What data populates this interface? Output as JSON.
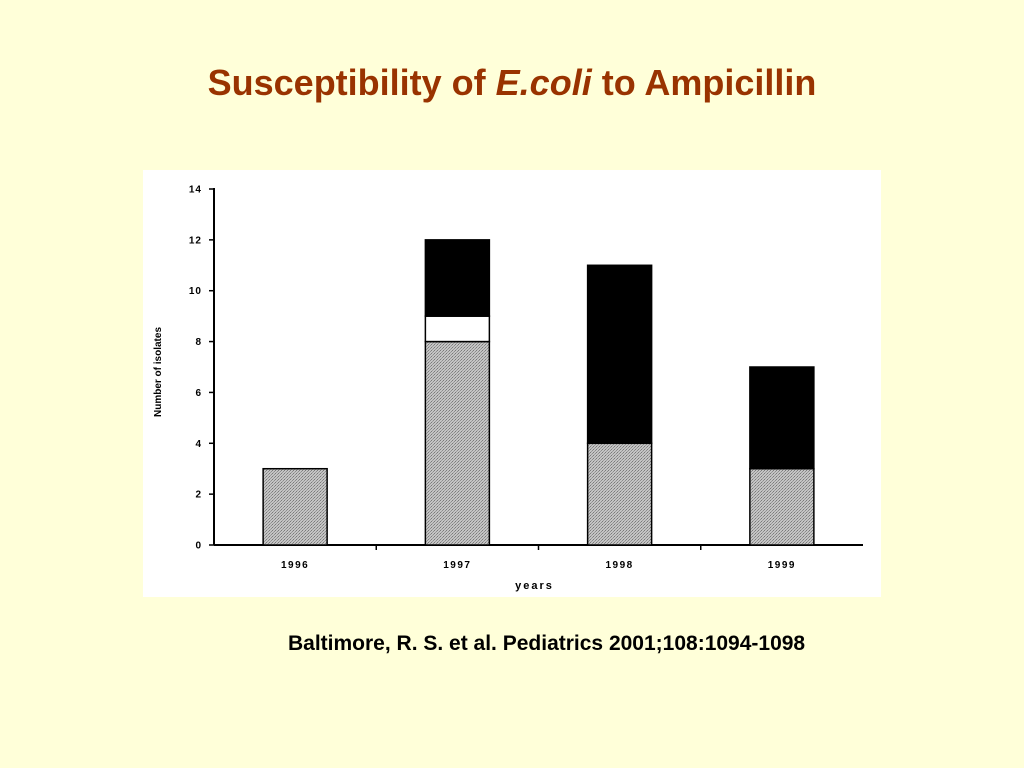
{
  "slide": {
    "title_part1": "Susceptibility of ",
    "title_italic": "E.coli",
    "title_part2": " to Ampicillin",
    "citation": "Baltimore, R. S. et al. Pediatrics 2001;108:1094-1098"
  },
  "colors": {
    "background": "#FFFFD9",
    "title": "#993300",
    "panel": "#FFFFFF",
    "series_stippled": "#BDBDBD",
    "series_white": "#FFFFFF",
    "series_black": "#000000"
  },
  "chart_data": {
    "type": "bar",
    "stacked": true,
    "title": "",
    "xlabel": "years",
    "ylabel": "Number of isolates",
    "categories": [
      "1996",
      "1997",
      "1998",
      "1999"
    ],
    "ylim": [
      0,
      14
    ],
    "yticks": [
      0,
      2,
      4,
      6,
      8,
      10,
      12,
      14
    ],
    "grid": false,
    "legend": "none",
    "series": [
      {
        "values": [
          3,
          8,
          4,
          3
        ],
        "fill": "stippled-gray"
      },
      {
        "values": [
          0,
          1,
          0,
          0
        ],
        "fill": "white"
      },
      {
        "values": [
          0,
          3,
          7,
          4
        ],
        "fill": "black"
      }
    ]
  }
}
